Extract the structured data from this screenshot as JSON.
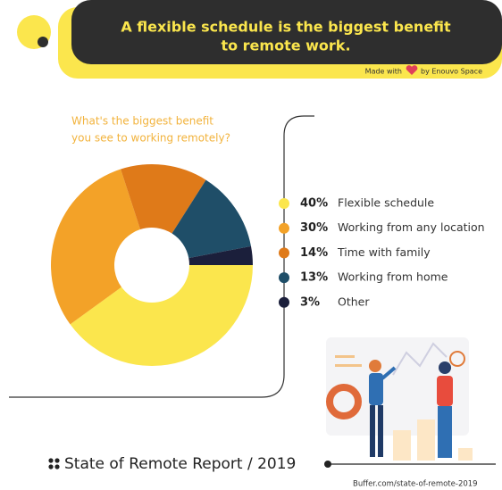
{
  "header": {
    "title": [
      "A flexible schedule is the biggest benefit",
      "to remote work."
    ],
    "credit_before": "Made with",
    "credit_after": "by Enouvo Space"
  },
  "chart_data": {
    "type": "pie",
    "title": [
      "What's the biggest benefit",
      "you see to working remotely?"
    ],
    "categories": [
      "Flexible schedule",
      "Working from any location",
      "Time with family",
      "Working from home",
      "Other"
    ],
    "values": [
      40,
      30,
      14,
      13,
      3
    ],
    "value_labels": [
      "40%",
      "30%",
      "14%",
      "13%",
      "3%"
    ],
    "colors": [
      "#fbe64d",
      "#f3a228",
      "#df7a19",
      "#1f4e68",
      "#1b1f3b"
    ]
  },
  "footer": {
    "title": "State of Remote Report / 2019",
    "url": "Buffer.com/state-of-remote-2019"
  }
}
